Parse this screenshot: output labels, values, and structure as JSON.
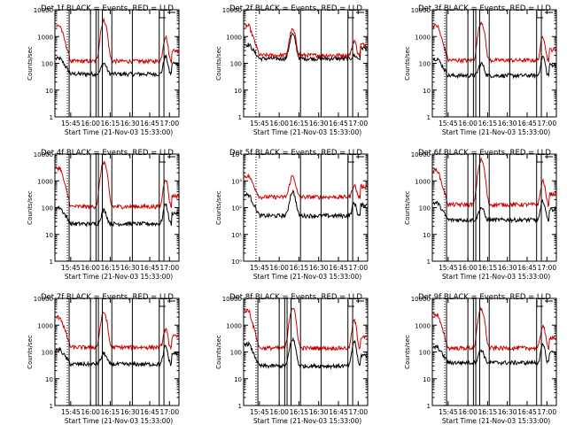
{
  "figure": {
    "background": "#ffffff",
    "axis_color": "#000000",
    "events_color": "#000000",
    "lld_color": "#d00000"
  },
  "chart_data": [
    {
      "type": "line",
      "panel": "det-1f",
      "title": "Det 1f BLACK = Events, RED = LLD",
      "xlabel": "Start Time (21-Nov-03 15:33:00)",
      "ylabel": "Counts/sec",
      "yscale": "log",
      "ylim": [
        1,
        10000
      ],
      "x_ticks": [
        "15:45",
        "16:00",
        "16:15",
        "16:30",
        "16:45",
        "17:00"
      ],
      "y_ticks": [
        "1",
        "10",
        "100",
        "1000",
        "10000"
      ],
      "vlines": [
        15.73,
        16.0,
        16.07,
        16.1,
        16.15,
        16.27,
        16.53,
        16.87,
        16.93
      ],
      "dotted_vlines": [
        15.55
      ],
      "legend": "top-right",
      "series": [
        {
          "name": "Events",
          "color": "#000000",
          "level": 40,
          "flare1": 100,
          "flare2": 180,
          "left": 150
        },
        {
          "name": "LLD",
          "color": "#d00000",
          "level": 120,
          "flare1": 4000,
          "flare2": 1000,
          "left": 2500
        }
      ]
    },
    {
      "type": "line",
      "panel": "det-2f",
      "title": "Det 2f BLACK = Events, RED = LLD",
      "xlabel": "Start Time (21-Nov-03 15:33:00)",
      "ylabel": "Counts/sec",
      "yscale": "log",
      "ylim": [
        1,
        10000
      ],
      "x_ticks": [
        "15:45",
        "16:00",
        "16:15",
        "16:30",
        "16:45",
        "17:00"
      ],
      "y_ticks": [
        "1",
        "10",
        "100",
        "1000",
        "10000"
      ],
      "vlines": [
        16.27,
        16.53,
        16.87,
        16.93
      ],
      "dotted_vlines": [
        15.55
      ],
      "legend": "top-right",
      "series": [
        {
          "name": "Events",
          "color": "#000000",
          "level": 150,
          "flare1": 1200,
          "flare2": 200,
          "left": 500
        },
        {
          "name": "LLD",
          "color": "#d00000",
          "level": 200,
          "flare1": 1800,
          "flare2": 700,
          "left": 2500
        }
      ]
    },
    {
      "type": "line",
      "panel": "det-3f",
      "title": "Det 3f BLACK = Events, RED = LLD",
      "xlabel": "Start Time (21-Nov-03 15:33:00)",
      "ylabel": "Counts/sec",
      "yscale": "log",
      "ylim": [
        1,
        10000
      ],
      "x_ticks": [
        "15:45",
        "16:00",
        "16:15",
        "16:30",
        "16:45",
        "17:00"
      ],
      "y_ticks": [
        "1",
        "10",
        "100",
        "1000",
        "10000"
      ],
      "vlines": [
        15.73,
        16.0,
        16.07,
        16.1,
        16.15,
        16.27,
        16.53,
        16.87,
        16.93
      ],
      "dotted_vlines": [
        15.55
      ],
      "legend": "top-right",
      "series": [
        {
          "name": "Events",
          "color": "#000000",
          "level": 35,
          "flare1": 100,
          "flare2": 180,
          "left": 150
        },
        {
          "name": "LLD",
          "color": "#d00000",
          "level": 130,
          "flare1": 3500,
          "flare2": 1000,
          "left": 2500
        }
      ]
    },
    {
      "type": "line",
      "panel": "det-4f",
      "title": "Det 4f BLACK = Events, RED = LLD",
      "xlabel": "Start Time (21-Nov-03 15:33:00)",
      "ylabel": "Counts/sec",
      "yscale": "log",
      "ylim": [
        1,
        10000
      ],
      "x_ticks": [
        "15:45",
        "16:00",
        "16:15",
        "16:30",
        "16:45",
        "17:00"
      ],
      "y_ticks": [
        "1",
        "10",
        "100",
        "1000",
        "10000"
      ],
      "vlines": [
        15.73,
        16.0,
        16.07,
        16.1,
        16.15,
        16.27,
        16.53,
        16.87,
        16.93
      ],
      "dotted_vlines": [
        15.55
      ],
      "legend": "top-right",
      "series": [
        {
          "name": "Events",
          "color": "#000000",
          "level": 25,
          "flare1": 80,
          "flare2": 140,
          "left": 100
        },
        {
          "name": "LLD",
          "color": "#d00000",
          "level": 110,
          "flare1": 5000,
          "flare2": 1200,
          "left": 3000
        }
      ]
    },
    {
      "type": "line",
      "panel": "det-5f",
      "title": "Det 5f BLACK = Events, RED = LLD",
      "xlabel": "Start Time (21-Nov-03 15:33:00)",
      "ylabel": "Counts/sec",
      "yscale": "log",
      "ylim": [
        1,
        10000
      ],
      "x_ticks": [
        "15:45",
        "16:00",
        "16:15",
        "16:30",
        "16:45",
        "17:00"
      ],
      "y_ticks": [
        "10⁰",
        "10¹",
        "10²",
        "10³",
        "10⁴"
      ],
      "vlines": [
        16.27,
        16.53,
        16.87,
        16.93
      ],
      "dotted_vlines": [
        15.55
      ],
      "legend": "top-right",
      "series": [
        {
          "name": "Events",
          "color": "#000000",
          "level": 50,
          "flare1": 400,
          "flare2": 150,
          "left": 300
        },
        {
          "name": "LLD",
          "color": "#d00000",
          "level": 250,
          "flare1": 1500,
          "flare2": 700,
          "left": 1500
        }
      ]
    },
    {
      "type": "line",
      "panel": "det-6f",
      "title": "Det 6f BLACK = Events, RED = LLD",
      "xlabel": "Start Time (21-Nov-03 15:33:00)",
      "ylabel": "Counts/sec",
      "yscale": "log",
      "ylim": [
        1,
        10000
      ],
      "x_ticks": [
        "15:45",
        "16:00",
        "16:15",
        "16:30",
        "16:45",
        "17:00"
      ],
      "y_ticks": [
        "1",
        "10",
        "100",
        "1000",
        "10000"
      ],
      "vlines": [
        15.73,
        16.0,
        16.07,
        16.1,
        16.15,
        16.27,
        16.53,
        16.87,
        16.93
      ],
      "dotted_vlines": [
        15.55
      ],
      "legend": "top-right",
      "series": [
        {
          "name": "Events",
          "color": "#000000",
          "level": 35,
          "flare1": 100,
          "flare2": 180,
          "left": 150
        },
        {
          "name": "LLD",
          "color": "#d00000",
          "level": 130,
          "flare1": 6000,
          "flare2": 1000,
          "left": 2500
        }
      ]
    },
    {
      "type": "line",
      "panel": "det-7f",
      "title": "Det 7f BLACK = Events, RED = LLD",
      "xlabel": "Start Time (21-Nov-03 15:33:00)",
      "ylabel": "Counts/sec",
      "yscale": "log",
      "ylim": [
        1,
        10000
      ],
      "x_ticks": [
        "15:45",
        "16:00",
        "16:15",
        "16:30",
        "16:45",
        "17:00"
      ],
      "y_ticks": [
        "1",
        "10",
        "100",
        "1000",
        "10000"
      ],
      "vlines": [
        15.73,
        16.0,
        16.07,
        16.1,
        16.15,
        16.27,
        16.53,
        16.87,
        16.93
      ],
      "dotted_vlines": [
        15.55
      ],
      "legend": "top-right",
      "series": [
        {
          "name": "Events",
          "color": "#000000",
          "level": 35,
          "flare1": 90,
          "flare2": 160,
          "left": 120
        },
        {
          "name": "LLD",
          "color": "#d00000",
          "level": 150,
          "flare1": 3000,
          "flare2": 700,
          "left": 2000
        }
      ]
    },
    {
      "type": "line",
      "panel": "det-8f",
      "title": "Det 8f BLACK = Events, RED = LLD",
      "xlabel": "Start Time (21-Nov-03 15:33:00)",
      "ylabel": "Counts/sec",
      "yscale": "log",
      "ylim": [
        1,
        10000
      ],
      "x_ticks": [
        "15:45",
        "16:00",
        "16:15",
        "16:30",
        "16:45",
        "17:00"
      ],
      "y_ticks": [
        "1",
        "10",
        "100",
        "1000",
        "10000"
      ],
      "vlines": [
        15.73,
        16.0,
        16.07,
        16.1,
        16.15,
        16.27,
        16.53,
        16.87,
        16.93
      ],
      "dotted_vlines": [
        15.55
      ],
      "legend": "top-right",
      "series": [
        {
          "name": "Events",
          "color": "#000000",
          "level": 30,
          "flare1": 300,
          "flare2": 250,
          "left": 200
        },
        {
          "name": "LLD",
          "color": "#d00000",
          "level": 140,
          "flare1": 4500,
          "flare2": 1500,
          "left": 3500
        }
      ]
    },
    {
      "type": "line",
      "panel": "det-9f",
      "title": "Det 9f BLACK = Events, RED = LLD",
      "xlabel": "Start Time (21-Nov-03 15:33:00)",
      "ylabel": "Counts/sec",
      "yscale": "log",
      "ylim": [
        1,
        10000
      ],
      "x_ticks": [
        "15:45",
        "16:00",
        "16:15",
        "16:30",
        "16:45",
        "17:00"
      ],
      "y_ticks": [
        "1",
        "10",
        "100",
        "1000",
        "10000"
      ],
      "vlines": [
        15.73,
        16.0,
        16.07,
        16.1,
        16.15,
        16.27,
        16.53,
        16.87,
        16.93
      ],
      "dotted_vlines": [
        15.55
      ],
      "legend": "top-right",
      "series": [
        {
          "name": "Events",
          "color": "#000000",
          "level": 40,
          "flare1": 120,
          "flare2": 180,
          "left": 150
        },
        {
          "name": "LLD",
          "color": "#d00000",
          "level": 140,
          "flare1": 4000,
          "flare2": 1000,
          "left": 2500
        }
      ]
    }
  ]
}
